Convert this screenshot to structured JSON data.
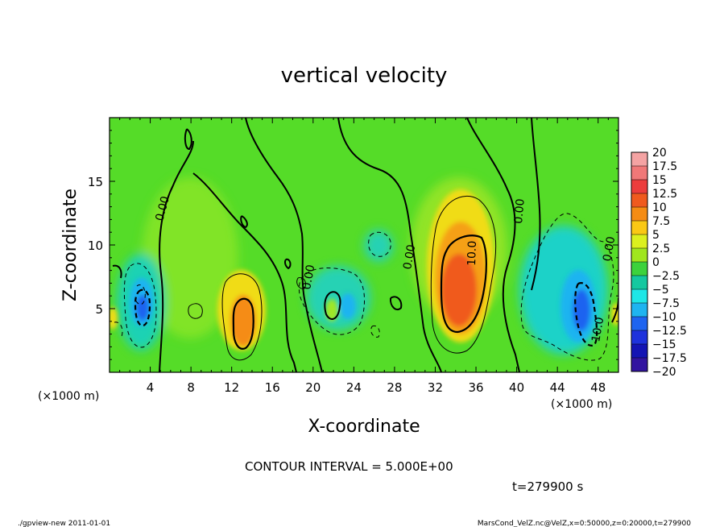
{
  "chart_data": {
    "type": "heatmap",
    "title": "vertical velocity",
    "xlabel": "X-coordinate",
    "ylabel": "Z-coordinate",
    "x_unit": "(×1000 m)",
    "y_unit": "(×1000 m)",
    "xlim": [
      0,
      50
    ],
    "ylim": [
      0,
      20
    ],
    "x_ticks": [
      4,
      8,
      12,
      16,
      20,
      24,
      28,
      32,
      36,
      40,
      44,
      48
    ],
    "y_ticks": [
      5,
      10,
      15
    ],
    "colorbar_labels": [
      "20",
      "17.5",
      "15",
      "12.5",
      "10",
      "7.5",
      "5",
      "2.5",
      "0",
      "−2.5",
      "−5",
      "−7.5",
      "−10",
      "−12.5",
      "−15",
      "−17.5",
      "−20"
    ],
    "colorbar_colors": [
      "#f4a3a3",
      "#f07878",
      "#ec3c3c",
      "#f05a1e",
      "#f58c14",
      "#fac814",
      "#dcf01e",
      "#a0e61e",
      "#3cd23c",
      "#14c8a0",
      "#1ee6e6",
      "#1eb4f0",
      "#1e64f0",
      "#1e32dc",
      "#1414b4",
      "#3214a0",
      "#6e28c8"
    ],
    "contour_labels": [
      "0.00",
      "0.00",
      "0.00",
      "0.00",
      "0.00",
      "10.0",
      "10.0"
    ],
    "contour_interval_text": "CONTOUR INTERVAL = 5.000E+00",
    "time_text": "t=279900 s",
    "cells": [
      {
        "x": 2.8,
        "z": 4.8,
        "w": -13
      },
      {
        "x": 13.2,
        "z": 3.8,
        "w": 14
      },
      {
        "x": 21.5,
        "z": 5.0,
        "w": -6
      },
      {
        "x": 34.3,
        "z": 7.0,
        "w": 15
      },
      {
        "x": 46.3,
        "z": 5.0,
        "w": -13
      },
      {
        "x": 19.0,
        "z": 6.5,
        "w": 5
      },
      {
        "x": 26.5,
        "z": 10.0,
        "w": -3
      }
    ]
  },
  "footer": {
    "left": "./gpview-new  2011-01-01",
    "right": "MarsCond_VelZ.nc@VelZ,x=0:50000,z=0:20000,t=279900"
  }
}
